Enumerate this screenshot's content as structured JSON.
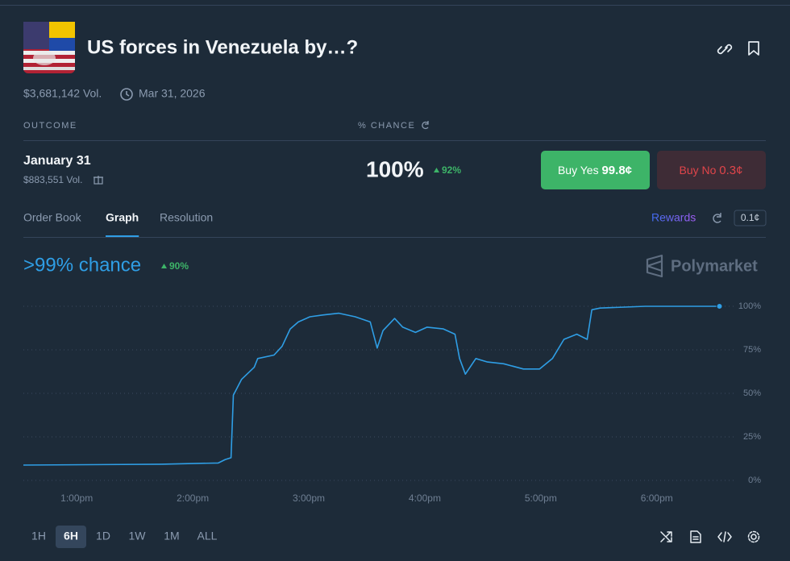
{
  "header": {
    "title": "US forces in Venezuela by…?",
    "volume": "$3,681,142 Vol.",
    "end_date": "Mar 31, 2026"
  },
  "outcomes_header": {
    "outcome": "OUTCOME",
    "chance": "% CHANCE"
  },
  "outcome": {
    "name": "January 31",
    "volume": "$883,551 Vol.",
    "chance": "100%",
    "change": "92%",
    "buy_yes": "Buy Yes",
    "yes_price": "99.8¢",
    "buy_no": "Buy No",
    "no_price": "0.3¢"
  },
  "tabs": [
    "Order Book",
    "Graph",
    "Resolution"
  ],
  "rewards": "Rewards",
  "tick_size": "0.1¢",
  "chart_data": {
    "type": "line",
    "title": ">99% chance",
    "change": "90%",
    "brand": "Polymarket",
    "color": "#2f9ee5",
    "x": [
      12.54,
      13.73,
      14.22,
      14.28,
      14.33,
      14.35,
      14.42,
      14.53,
      14.56,
      14.7,
      14.77,
      14.84,
      14.91,
      15.01,
      15.12,
      15.26,
      15.4,
      15.53,
      15.59,
      15.64,
      15.74,
      15.81,
      15.92,
      16.02,
      16.16,
      16.26,
      16.3,
      16.35,
      16.44,
      16.54,
      16.68,
      16.85,
      16.99,
      17.1,
      17.2,
      17.31,
      17.4,
      17.44,
      17.51,
      17.9,
      18.54
    ],
    "values": [
      8.8,
      9.3,
      10,
      12,
      13,
      49,
      58,
      65,
      70,
      72,
      77,
      87,
      91,
      94,
      95,
      96,
      94,
      91,
      76,
      86,
      93,
      88,
      85,
      88,
      87,
      84,
      70,
      61,
      70,
      68,
      67,
      64,
      64,
      70,
      81,
      84,
      81,
      98,
      99,
      100,
      100
    ],
    "xlim": [
      12.54,
      18.62
    ],
    "xticks": [
      {
        "value": 13,
        "label": "1:00pm"
      },
      {
        "value": 14,
        "label": "2:00pm"
      },
      {
        "value": 15,
        "label": "3:00pm"
      },
      {
        "value": 16,
        "label": "4:00pm"
      },
      {
        "value": 17,
        "label": "5:00pm"
      },
      {
        "value": 18,
        "label": "6:00pm"
      }
    ],
    "ylim": [
      0,
      100
    ],
    "yticks": [
      {
        "value": 0,
        "label": "0%"
      },
      {
        "value": 25,
        "label": "25%"
      },
      {
        "value": 50,
        "label": "50%"
      },
      {
        "value": 75,
        "label": "75%"
      },
      {
        "value": 100,
        "label": "100%"
      }
    ],
    "grid": true
  },
  "ranges": [
    "1H",
    "6H",
    "1D",
    "1W",
    "1M",
    "ALL"
  ]
}
